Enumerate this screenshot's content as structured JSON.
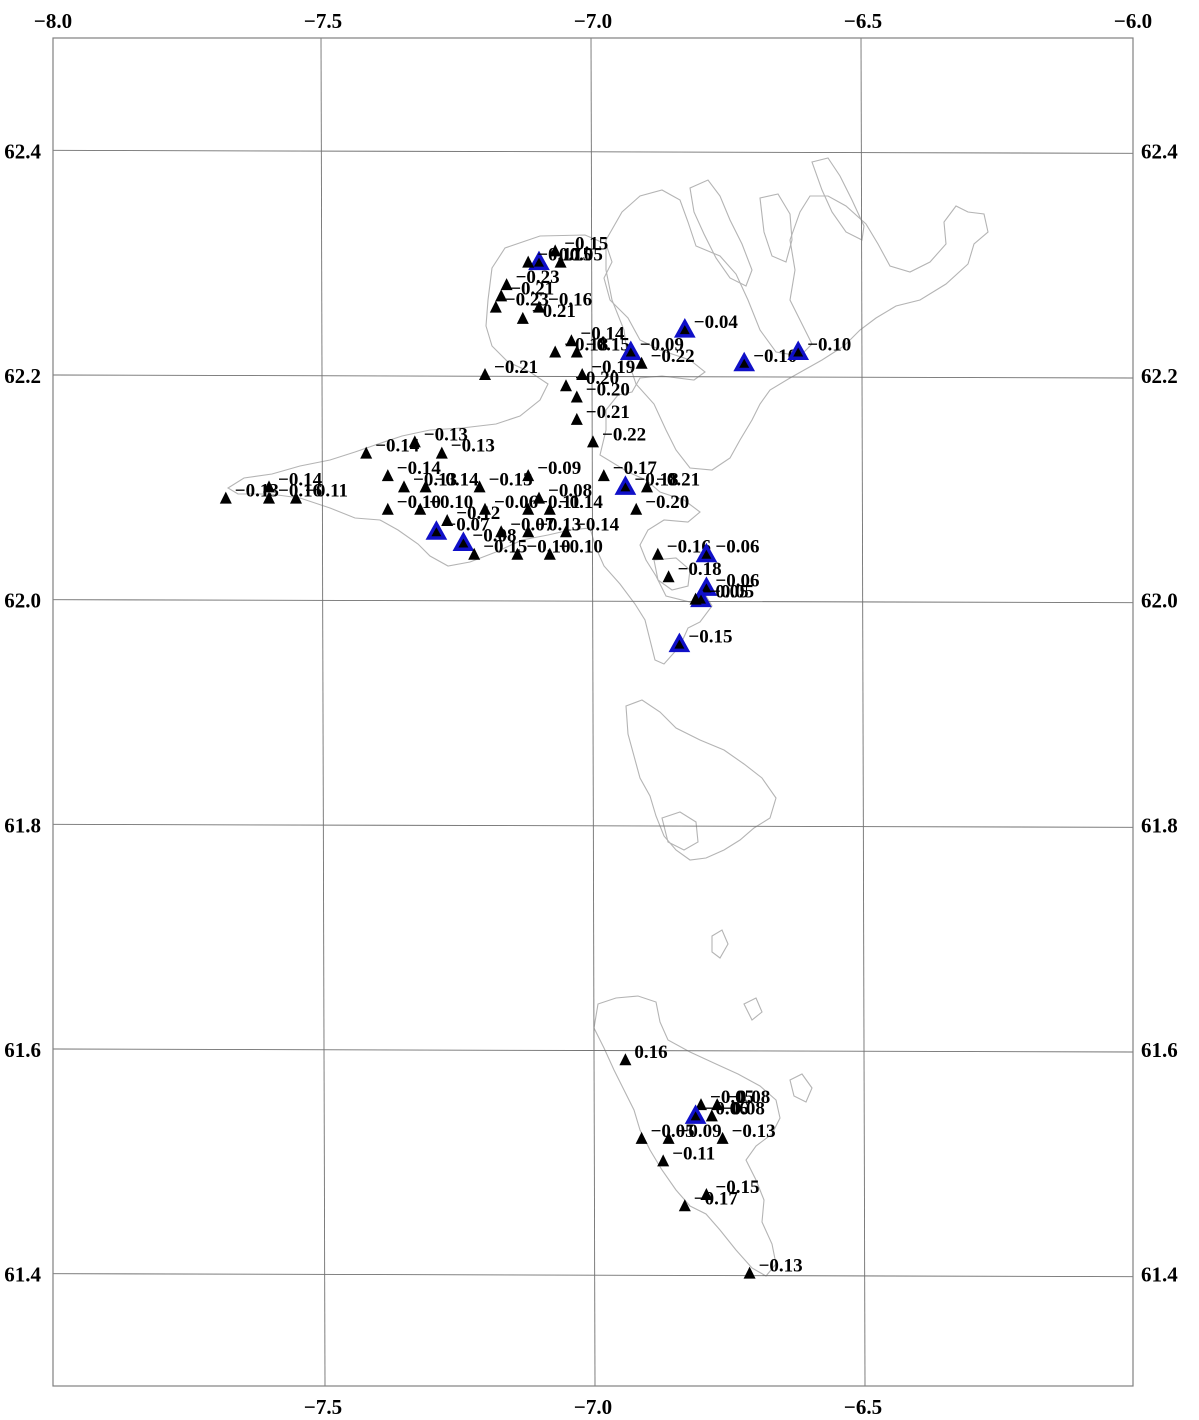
{
  "map": {
    "lon_range": [
      -8.0,
      -6.0
    ],
    "lat_range": [
      61.3,
      62.5
    ],
    "lon_ticks": [
      {
        "value": -8.0,
        "label": "−8.0"
      },
      {
        "value": -7.5,
        "label": "−7.5"
      },
      {
        "value": -7.0,
        "label": "−7.0"
      },
      {
        "value": -6.5,
        "label": "−6.5"
      },
      {
        "value": -6.0,
        "label": "−6.0"
      }
    ],
    "lat_ticks": [
      {
        "value": 62.4,
        "label": "62.4"
      },
      {
        "value": 62.2,
        "label": "62.2"
      },
      {
        "value": 62.0,
        "label": "62.0"
      },
      {
        "value": 61.8,
        "label": "61.8"
      },
      {
        "value": 61.6,
        "label": "61.6"
      },
      {
        "value": 61.4,
        "label": "61.4"
      }
    ],
    "colors": {
      "station": "#000000",
      "highlight_station": "#1010c8",
      "coastline": "#b4b4b4",
      "grid": "#707070"
    }
  },
  "stations": [
    {
      "lon": -7.1,
      "lat": 62.3,
      "label": "−0.15",
      "hl": true
    },
    {
      "lon": -7.07,
      "lat": 62.31,
      "label": "−0.15"
    },
    {
      "lon": -7.12,
      "lat": 62.3,
      "label": "−0.17"
    },
    {
      "lon": -7.06,
      "lat": 62.3,
      "label": "0.05"
    },
    {
      "lon": -7.16,
      "lat": 62.28,
      "label": "−0.23"
    },
    {
      "lon": -7.17,
      "lat": 62.27,
      "label": "−0.21"
    },
    {
      "lon": -7.18,
      "lat": 62.26,
      "label": "−0.23"
    },
    {
      "lon": -7.1,
      "lat": 62.26,
      "label": "−0.16"
    },
    {
      "lon": -7.13,
      "lat": 62.25,
      "label": "−0.21"
    },
    {
      "lon": -7.04,
      "lat": 62.23,
      "label": "−0.14"
    },
    {
      "lon": -7.07,
      "lat": 62.22,
      "label": "−0.18"
    },
    {
      "lon": -7.03,
      "lat": 62.22,
      "label": "−0.15"
    },
    {
      "lon": -6.93,
      "lat": 62.22,
      "label": "−0.09",
      "hl": true
    },
    {
      "lon": -6.91,
      "lat": 62.21,
      "label": "−0.22"
    },
    {
      "lon": -6.83,
      "lat": 62.24,
      "label": "−0.04",
      "hl": true
    },
    {
      "lon": -6.72,
      "lat": 62.21,
      "label": "−0.10",
      "hl": true
    },
    {
      "lon": -6.62,
      "lat": 62.22,
      "label": "−0.10",
      "hl": true
    },
    {
      "lon": -7.2,
      "lat": 62.2,
      "label": "−0.21"
    },
    {
      "lon": -7.05,
      "lat": 62.19,
      "label": "−0.20"
    },
    {
      "lon": -7.02,
      "lat": 62.2,
      "label": "−0.19"
    },
    {
      "lon": -7.03,
      "lat": 62.18,
      "label": "−0.20"
    },
    {
      "lon": -7.03,
      "lat": 62.16,
      "label": "−0.21"
    },
    {
      "lon": -7.0,
      "lat": 62.14,
      "label": "−0.22"
    },
    {
      "lon": -7.42,
      "lat": 62.13,
      "label": "−0.14"
    },
    {
      "lon": -7.33,
      "lat": 62.14,
      "label": "−0.13"
    },
    {
      "lon": -7.28,
      "lat": 62.13,
      "label": "−0.13"
    },
    {
      "lon": -7.38,
      "lat": 62.11,
      "label": "−0.14"
    },
    {
      "lon": -7.6,
      "lat": 62.1,
      "label": "−0.14"
    },
    {
      "lon": -7.68,
      "lat": 62.09,
      "label": "−0.13"
    },
    {
      "lon": -7.6,
      "lat": 62.09,
      "label": "−0.16"
    },
    {
      "lon": -7.55,
      "lat": 62.09,
      "label": "−0.11"
    },
    {
      "lon": -7.35,
      "lat": 62.1,
      "label": "−0.13"
    },
    {
      "lon": -7.31,
      "lat": 62.1,
      "label": "−0.14"
    },
    {
      "lon": -7.21,
      "lat": 62.1,
      "label": "−0.13"
    },
    {
      "lon": -7.12,
      "lat": 62.11,
      "label": "−0.09"
    },
    {
      "lon": -7.1,
      "lat": 62.09,
      "label": "−0.08"
    },
    {
      "lon": -6.98,
      "lat": 62.11,
      "label": "−0.17"
    },
    {
      "lon": -6.94,
      "lat": 62.1,
      "label": "−0.18",
      "hl": true
    },
    {
      "lon": -6.9,
      "lat": 62.1,
      "label": "−0.21"
    },
    {
      "lon": -6.92,
      "lat": 62.08,
      "label": "−0.20"
    },
    {
      "lon": -7.38,
      "lat": 62.08,
      "label": "−0.10"
    },
    {
      "lon": -7.32,
      "lat": 62.08,
      "label": "−0.10"
    },
    {
      "lon": -7.27,
      "lat": 62.07,
      "label": "−0.12"
    },
    {
      "lon": -7.2,
      "lat": 62.08,
      "label": "−0.06"
    },
    {
      "lon": -7.12,
      "lat": 62.08,
      "label": "−0.11"
    },
    {
      "lon": -7.08,
      "lat": 62.08,
      "label": "−0.14"
    },
    {
      "lon": -7.29,
      "lat": 62.06,
      "label": "−0.07",
      "hl": true
    },
    {
      "lon": -7.24,
      "lat": 62.05,
      "label": "−0.08",
      "hl": true
    },
    {
      "lon": -7.17,
      "lat": 62.06,
      "label": "−0.07"
    },
    {
      "lon": -7.12,
      "lat": 62.06,
      "label": "−0.13"
    },
    {
      "lon": -7.05,
      "lat": 62.06,
      "label": "−0.14"
    },
    {
      "lon": -7.14,
      "lat": 62.04,
      "label": "−0.10"
    },
    {
      "lon": -7.08,
      "lat": 62.04,
      "label": "−0.10"
    },
    {
      "lon": -7.22,
      "lat": 62.04,
      "label": "−0.15"
    },
    {
      "lon": -6.88,
      "lat": 62.04,
      "label": "−0.16"
    },
    {
      "lon": -6.86,
      "lat": 62.02,
      "label": "−0.18"
    },
    {
      "lon": -6.79,
      "lat": 62.04,
      "label": "−0.06",
      "hl": true
    },
    {
      "lon": -6.79,
      "lat": 62.01,
      "label": "−0.06",
      "hl": true
    },
    {
      "lon": -6.8,
      "lat": 62.0,
      "label": "−0.05",
      "hl": true
    },
    {
      "lon": -6.81,
      "lat": 62.0,
      "label": "−0.05"
    },
    {
      "lon": -6.84,
      "lat": 61.96,
      "label": "−0.15",
      "hl": true
    },
    {
      "lon": -6.94,
      "lat": 61.59,
      "label": "0.16"
    },
    {
      "lon": -6.8,
      "lat": 61.55,
      "label": "−0.05"
    },
    {
      "lon": -6.77,
      "lat": 61.55,
      "label": "−0.08"
    },
    {
      "lon": -6.81,
      "lat": 61.54,
      "label": "−0.06",
      "hl": true
    },
    {
      "lon": -6.78,
      "lat": 61.54,
      "label": "−0.08"
    },
    {
      "lon": -6.91,
      "lat": 61.52,
      "label": "−0.05"
    },
    {
      "lon": -6.86,
      "lat": 61.52,
      "label": "−0.09"
    },
    {
      "lon": -6.76,
      "lat": 61.52,
      "label": "−0.13"
    },
    {
      "lon": -6.87,
      "lat": 61.5,
      "label": "−0.11"
    },
    {
      "lon": -6.79,
      "lat": 61.47,
      "label": "−0.15"
    },
    {
      "lon": -6.83,
      "lat": 61.46,
      "label": "−0.17"
    },
    {
      "lon": -6.71,
      "lat": 61.4,
      "label": "−0.13"
    }
  ]
}
